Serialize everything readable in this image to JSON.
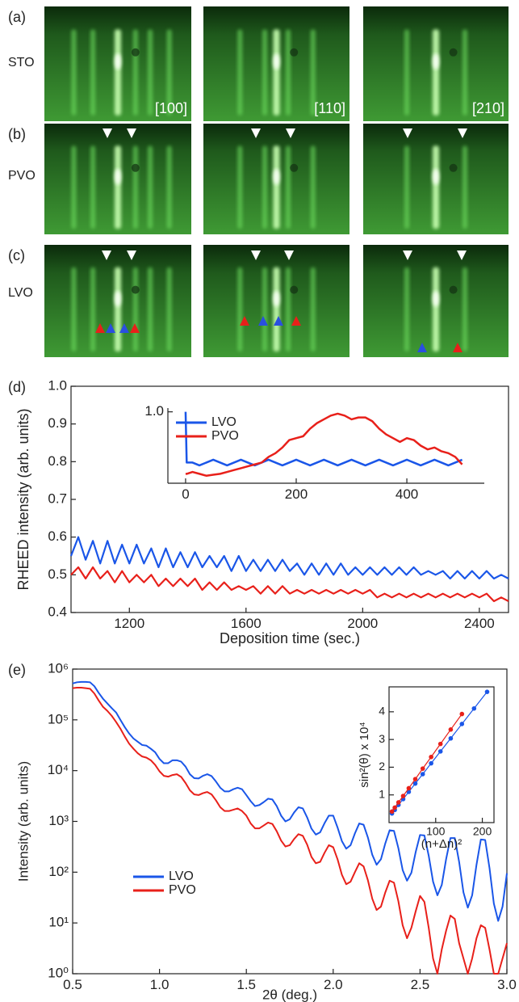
{
  "rheed": {
    "rows": [
      {
        "label": "(a)",
        "material": "STO"
      },
      {
        "label": "(b)",
        "material": "PVO"
      },
      {
        "label": "(c)",
        "material": "LVO"
      }
    ],
    "directions": [
      "[100]",
      "[110]",
      "[210]"
    ]
  },
  "chart_data": [
    {
      "type": "line",
      "label": "(d)",
      "xlabel": "Deposition time (sec.)",
      "ylabel": "RHEED intensity (arb. units)",
      "xlim": [
        1000,
        2500
      ],
      "ylim": [
        0.4,
        1.0
      ],
      "xticks": [
        1200,
        1600,
        2000,
        2400
      ],
      "yticks": [
        0.4,
        0.5,
        0.6,
        0.7,
        0.8,
        0.9,
        {
          "value": 1,
          "label": "1.0"
        }
      ],
      "x": [
        1000,
        1025,
        1050,
        1075,
        1100,
        1125,
        1150,
        1175,
        1200,
        1225,
        1250,
        1275,
        1300,
        1325,
        1350,
        1375,
        1400,
        1425,
        1450,
        1475,
        1500,
        1525,
        1550,
        1575,
        1600,
        1625,
        1650,
        1675,
        1700,
        1725,
        1750,
        1775,
        1800,
        1825,
        1850,
        1875,
        1900,
        1925,
        1950,
        1975,
        2000,
        2025,
        2050,
        2075,
        2100,
        2125,
        2150,
        2175,
        2200,
        2225,
        2250,
        2275,
        2300,
        2325,
        2350,
        2375,
        2400,
        2425,
        2450,
        2475,
        2500
      ],
      "series": [
        {
          "name": "LVO",
          "color": "#1a56e8",
          "values": [
            0.55,
            0.6,
            0.54,
            0.59,
            0.53,
            0.59,
            0.53,
            0.58,
            0.53,
            0.58,
            0.53,
            0.57,
            0.52,
            0.57,
            0.52,
            0.56,
            0.52,
            0.56,
            0.52,
            0.55,
            0.52,
            0.55,
            0.51,
            0.55,
            0.51,
            0.54,
            0.51,
            0.54,
            0.51,
            0.54,
            0.51,
            0.53,
            0.5,
            0.53,
            0.5,
            0.53,
            0.5,
            0.53,
            0.5,
            0.52,
            0.5,
            0.52,
            0.5,
            0.52,
            0.5,
            0.52,
            0.5,
            0.52,
            0.5,
            0.51,
            0.5,
            0.51,
            0.49,
            0.51,
            0.49,
            0.51,
            0.49,
            0.51,
            0.49,
            0.5,
            0.49
          ]
        },
        {
          "name": "PVO",
          "color": "#e8201a",
          "values": [
            0.5,
            0.52,
            0.49,
            0.52,
            0.49,
            0.51,
            0.48,
            0.51,
            0.48,
            0.5,
            0.48,
            0.5,
            0.47,
            0.49,
            0.47,
            0.49,
            0.47,
            0.49,
            0.46,
            0.48,
            0.46,
            0.48,
            0.46,
            0.47,
            0.46,
            0.47,
            0.45,
            0.47,
            0.45,
            0.47,
            0.45,
            0.46,
            0.45,
            0.46,
            0.45,
            0.46,
            0.45,
            0.46,
            0.45,
            0.46,
            0.45,
            0.46,
            0.44,
            0.45,
            0.44,
            0.45,
            0.44,
            0.45,
            0.44,
            0.45,
            0.44,
            0.45,
            0.44,
            0.45,
            0.44,
            0.45,
            0.44,
            0.45,
            0.43,
            0.44,
            0.43
          ]
        }
      ]
    },
    {
      "type": "line",
      "xlim": [
        -32,
        540
      ],
      "ylim": [
        0.62,
        1.02
      ],
      "xticks": [
        0,
        200,
        400
      ],
      "yticks": [
        {
          "value": 1,
          "label": "1.0"
        }
      ],
      "x": [
        0,
        2,
        12.5,
        25,
        37.5,
        50,
        62.5,
        75,
        87.5,
        100,
        112.5,
        125,
        137.5,
        150,
        162.5,
        175,
        187.5,
        200,
        212.5,
        225,
        237.5,
        250,
        262.5,
        275,
        287.5,
        300,
        312.5,
        325,
        337.5,
        350,
        362.5,
        375,
        387.5,
        400,
        412.5,
        425,
        437.5,
        450,
        462.5,
        475,
        487.5,
        500
      ],
      "series": [
        {
          "name": "LVO",
          "color": "#1a56e8",
          "values": [
            1.0,
            0.73,
            0.73,
            0.715,
            0.73,
            0.745,
            0.73,
            0.715,
            0.73,
            0.745,
            0.73,
            0.715,
            0.73,
            0.745,
            0.73,
            0.715,
            0.73,
            0.745,
            0.73,
            0.715,
            0.73,
            0.745,
            0.73,
            0.715,
            0.73,
            0.745,
            0.73,
            0.715,
            0.73,
            0.745,
            0.73,
            0.715,
            0.73,
            0.745,
            0.73,
            0.715,
            0.73,
            0.745,
            0.73,
            0.715,
            0.73,
            0.745
          ]
        },
        {
          "name": "PVO",
          "color": "#e8201a",
          "values": [
            0.67,
            0.67,
            0.68,
            0.67,
            0.66,
            0.665,
            0.67,
            0.68,
            0.69,
            0.7,
            0.71,
            0.72,
            0.73,
            0.76,
            0.78,
            0.81,
            0.85,
            0.86,
            0.87,
            0.91,
            0.94,
            0.96,
            0.98,
            0.99,
            0.98,
            0.96,
            0.97,
            0.97,
            0.95,
            0.91,
            0.88,
            0.86,
            0.84,
            0.86,
            0.85,
            0.82,
            0.8,
            0.81,
            0.79,
            0.78,
            0.76,
            0.72
          ]
        }
      ]
    },
    {
      "type": "line",
      "label": "(e)",
      "xlabel": "2θ (deg.)",
      "ylabel": "Intensity (arb. units)",
      "log_y": true,
      "xlim": [
        0.5,
        3.0
      ],
      "ylim": [
        1,
        1000000
      ],
      "xticks": [
        0.5,
        {
          "value": 1,
          "label": "1.0"
        },
        1.5,
        {
          "value": 2,
          "label": "2.0"
        },
        2.5,
        {
          "value": 3,
          "label": "3.0"
        }
      ],
      "yticks": [
        {
          "value": 1,
          "label": "10⁰"
        },
        {
          "value": 10,
          "label": "10¹"
        },
        {
          "value": 100,
          "label": "10²"
        },
        {
          "value": 1000,
          "label": "10³"
        },
        {
          "value": 10000,
          "label": "10⁴"
        },
        {
          "value": 100000,
          "label": "10⁵"
        },
        {
          "value": 1000000,
          "label": "10⁶"
        }
      ],
      "x": [
        0.5,
        0.525,
        0.55,
        0.575,
        0.6,
        0.625,
        0.65,
        0.675,
        0.7,
        0.725,
        0.75,
        0.775,
        0.8,
        0.825,
        0.85,
        0.875,
        0.9,
        0.925,
        0.95,
        0.975,
        1.0,
        1.025,
        1.05,
        1.075,
        1.1,
        1.125,
        1.15,
        1.175,
        1.2,
        1.225,
        1.25,
        1.275,
        1.3,
        1.325,
        1.35,
        1.375,
        1.4,
        1.425,
        1.45,
        1.475,
        1.5,
        1.525,
        1.55,
        1.575,
        1.6,
        1.625,
        1.65,
        1.675,
        1.7,
        1.725,
        1.75,
        1.775,
        1.8,
        1.825,
        1.85,
        1.875,
        1.9,
        1.925,
        1.95,
        1.975,
        2.0,
        2.025,
        2.05,
        2.075,
        2.1,
        2.125,
        2.15,
        2.175,
        2.2,
        2.225,
        2.25,
        2.275,
        2.3,
        2.325,
        2.35,
        2.375,
        2.4,
        2.425,
        2.45,
        2.475,
        2.5,
        2.525,
        2.55,
        2.575,
        2.6,
        2.625,
        2.65,
        2.675,
        2.7,
        2.725,
        2.75,
        2.775,
        2.8,
        2.825,
        2.85,
        2.875,
        2.9,
        2.925,
        2.95,
        2.975,
        3.0
      ],
      "series": [
        {
          "name": "LVO",
          "color": "#1a56e8",
          "values": [
            520000,
            550000,
            560000,
            560000,
            550000,
            460000,
            340000,
            260000,
            210000,
            170000,
            140000,
            100000,
            72000,
            54000,
            43000,
            37000,
            32000,
            31000,
            27000,
            23000,
            17000,
            14000,
            14000,
            16000,
            16000,
            15000,
            12000,
            8500,
            7100,
            7000,
            7900,
            8500,
            7800,
            6100,
            4600,
            3900,
            3900,
            4300,
            4600,
            4300,
            3300,
            2500,
            2000,
            2100,
            2400,
            2800,
            2700,
            2000,
            1300,
            1000,
            1100,
            1500,
            1900,
            1800,
            1200,
            720,
            550,
            610,
            920,
            1300,
            1300,
            760,
            410,
            290,
            340,
            580,
            910,
            860,
            480,
            220,
            140,
            180,
            370,
            670,
            650,
            300,
            110,
            68,
            97,
            250,
            540,
            530,
            210,
            65,
            35,
            56,
            180,
            470,
            470,
            160,
            40,
            20,
            35,
            140,
            440,
            430,
            120,
            24,
            11,
            21,
            95
          ]
        },
        {
          "name": "PVO",
          "color": "#e8201a",
          "values": [
            420000,
            430000,
            430000,
            420000,
            410000,
            330000,
            240000,
            180000,
            150000,
            120000,
            91000,
            67000,
            47000,
            34000,
            27000,
            22000,
            19000,
            18000,
            16000,
            13000,
            9700,
            7900,
            7600,
            8200,
            8500,
            7500,
            5700,
            4100,
            3400,
            3300,
            3600,
            3800,
            3400,
            2600,
            1900,
            1600,
            1600,
            1700,
            1800,
            1600,
            1300,
            910,
            730,
            730,
            830,
            950,
            890,
            640,
            420,
            320,
            340,
            450,
            560,
            520,
            350,
            200,
            150,
            160,
            240,
            340,
            310,
            180,
            89,
            58,
            65,
            100,
            150,
            130,
            69,
            30,
            18,
            21,
            40,
            68,
            62,
            27,
            9,
            5,
            8,
            17,
            34,
            26,
            8,
            2,
            1,
            3,
            7,
            14,
            12,
            4,
            2,
            1,
            2,
            5,
            9,
            8,
            3,
            1,
            1,
            2,
            4
          ]
        }
      ]
    },
    {
      "type": "scatter",
      "xlabel": "(n+Δn)²",
      "ylabel": "sin²(θ) x 10⁴",
      "xlim": [
        0,
        225
      ],
      "ylim": [
        0,
        4.9
      ],
      "xticks": [
        100,
        200
      ],
      "yticks": [
        1,
        2,
        3,
        4
      ],
      "series": [
        {
          "name": "LVO",
          "color": "#1a56e8",
          "x": [
            6.25,
            12.25,
            20.25,
            30.25,
            42.25,
            56.25,
            72.25,
            90.25,
            110.25,
            132.25,
            156.25,
            182.25,
            210.25
          ],
          "values": [
            0.33,
            0.46,
            0.64,
            0.85,
            1.11,
            1.41,
            1.75,
            2.14,
            2.57,
            3.04,
            3.56,
            4.12,
            4.72
          ]
        },
        {
          "name": "PVO",
          "color": "#e8201a",
          "x": [
            6.25,
            12.25,
            20.25,
            30.25,
            42.25,
            56.25,
            72.25,
            90.25,
            110.25,
            132.25,
            156.25
          ],
          "values": [
            0.4,
            0.54,
            0.73,
            0.96,
            1.24,
            1.57,
            1.95,
            2.37,
            2.84,
            3.36,
            3.92
          ]
        }
      ]
    }
  ]
}
